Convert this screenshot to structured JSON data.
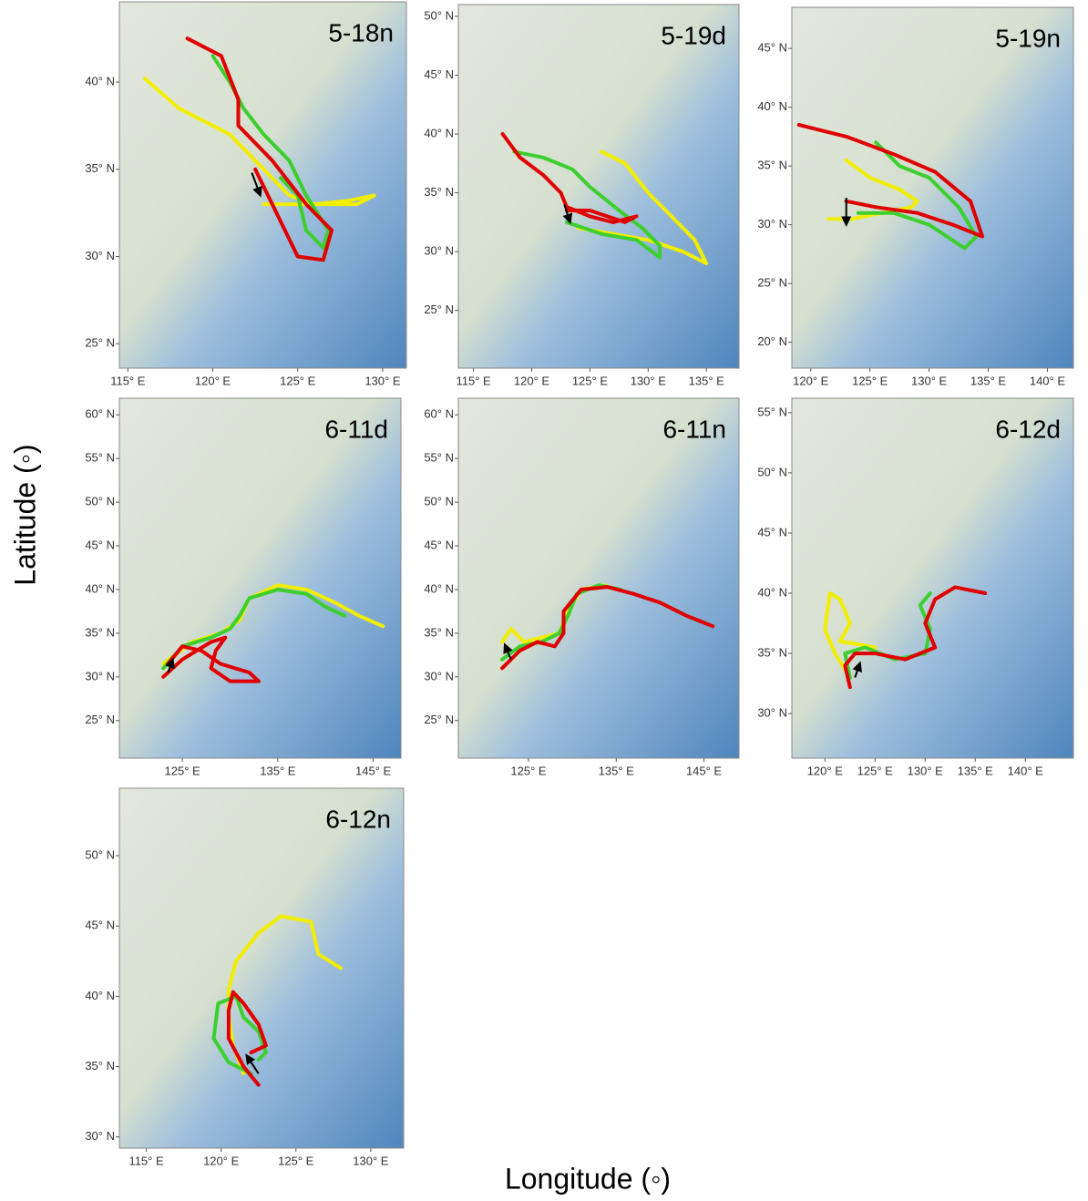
{
  "ylabel": "Latitude (◦)",
  "xlabel": "Longitude (◦)",
  "chart_data": [
    {
      "type": "map",
      "title": "5-18n",
      "xlim": [
        114.5,
        131.4
      ],
      "ylim": [
        23.6,
        44.6
      ],
      "xticks": [
        {
          "value": 115,
          "label": "115° E"
        },
        {
          "value": 120,
          "label": "120° E"
        },
        {
          "value": 125,
          "label": "125° E"
        },
        {
          "value": 130,
          "label": "130° E"
        }
      ],
      "yticks": [
        {
          "value": 25,
          "label": "25° N"
        },
        {
          "value": 30,
          "label": "30° N"
        },
        {
          "value": 35,
          "label": "35° N"
        },
        {
          "value": 40,
          "label": "40° N"
        }
      ],
      "series": [
        {
          "color": "#f2ee00",
          "x": [
            116,
            118,
            121,
            123,
            124.5,
            126,
            128,
            129.5,
            128.5,
            125,
            123
          ],
          "y": [
            40.2,
            38.5,
            37,
            35,
            33.5,
            33,
            33.2,
            33.5,
            33,
            33,
            33
          ]
        },
        {
          "color": "#3ccf2e",
          "x": [
            120,
            121,
            121.8,
            123,
            124.5,
            125.5,
            126.8,
            126.5,
            125.5,
            125,
            124
          ],
          "y": [
            41.5,
            40,
            38.5,
            37,
            35.5,
            33.5,
            31.5,
            30.5,
            31.5,
            33.5,
            34.5
          ]
        },
        {
          "color": "#e00000",
          "x": [
            118.5,
            120.5,
            121.5,
            121.5,
            123.5,
            125.5,
            127,
            126.5,
            125,
            124,
            123,
            122.5
          ],
          "y": [
            42.5,
            41.5,
            39,
            37.5,
            35.5,
            33,
            31.5,
            29.8,
            30,
            32,
            34,
            35
          ]
        }
      ],
      "arrow": {
        "x": [
          122.3,
          122.8
        ],
        "y": [
          34.8,
          33.5
        ]
      }
    },
    {
      "type": "map",
      "title": "5-19d",
      "xlim": [
        113.7,
        137.8
      ],
      "ylim": [
        20.1,
        51
      ],
      "xticks": [
        {
          "value": 115,
          "label": "115° E"
        },
        {
          "value": 120,
          "label": "120° E"
        },
        {
          "value": 125,
          "label": "125° E"
        },
        {
          "value": 130,
          "label": "130° E"
        },
        {
          "value": 135,
          "label": "135° E"
        }
      ],
      "yticks": [
        {
          "value": 25,
          "label": "25° N"
        },
        {
          "value": 30,
          "label": "30° N"
        },
        {
          "value": 35,
          "label": "35° N"
        },
        {
          "value": 40,
          "label": "40° N"
        },
        {
          "value": 45,
          "label": "45° N"
        },
        {
          "value": 50,
          "label": "50° N"
        }
      ],
      "series": [
        {
          "color": "#f2ee00",
          "x": [
            126,
            128,
            130,
            132,
            134,
            135,
            133,
            130,
            127,
            124
          ],
          "y": [
            38.5,
            37.5,
            35,
            33,
            31,
            29,
            30,
            31,
            31.5,
            32
          ]
        },
        {
          "color": "#3ccf2e",
          "x": [
            118.5,
            121,
            123.5,
            125,
            127.5,
            129.5,
            131,
            131,
            129,
            126,
            123
          ],
          "y": [
            38.5,
            38,
            37,
            35.5,
            33.5,
            32,
            30.5,
            29.5,
            31,
            31.5,
            32.5
          ]
        },
        {
          "color": "#e00000",
          "x": [
            117.5,
            119,
            121,
            122.5,
            123,
            125,
            127,
            129,
            128,
            125,
            123
          ],
          "y": [
            40,
            38,
            36.5,
            35,
            33.8,
            33,
            32.5,
            33,
            32.5,
            33.5,
            33.5
          ]
        }
      ],
      "arrow": {
        "x": [
          122.8,
          123.3
        ],
        "y": [
          34,
          32.5
        ]
      }
    },
    {
      "type": "map",
      "title": "5-19n",
      "xlim": [
        118.4,
        142.2
      ],
      "ylim": [
        17.8,
        48.5
      ],
      "xticks": [
        {
          "value": 120,
          "label": "120° E"
        },
        {
          "value": 125,
          "label": "125° E"
        },
        {
          "value": 130,
          "label": "130° E"
        },
        {
          "value": 135,
          "label": "135° E"
        },
        {
          "value": 140,
          "label": "140° E"
        }
      ],
      "yticks": [
        {
          "value": 20,
          "label": "20° N"
        },
        {
          "value": 25,
          "label": "25° N"
        },
        {
          "value": 30,
          "label": "30° N"
        },
        {
          "value": 35,
          "label": "35° N"
        },
        {
          "value": 40,
          "label": "40° N"
        },
        {
          "value": 45,
          "label": "45° N"
        }
      ],
      "series": [
        {
          "color": "#f2ee00",
          "x": [
            123,
            125,
            127.5,
            129,
            128.5,
            126,
            123.5,
            121.5
          ],
          "y": [
            35.5,
            34,
            33,
            32,
            31.5,
            31,
            30.5,
            30.5
          ]
        },
        {
          "color": "#3ccf2e",
          "x": [
            125.5,
            127.5,
            130,
            132.5,
            134,
            133,
            130,
            127,
            124
          ],
          "y": [
            37,
            35,
            34,
            31.5,
            29,
            28,
            30,
            31,
            31
          ]
        },
        {
          "color": "#e00000",
          "x": [
            119,
            123,
            127,
            130.5,
            133.5,
            134.5,
            132,
            129,
            125.5,
            123
          ],
          "y": [
            38.5,
            37.5,
            36,
            34.5,
            32,
            29,
            30,
            31,
            31.5,
            32
          ]
        }
      ],
      "arrow": {
        "x": [
          123,
          123
        ],
        "y": [
          32.3,
          30
        ]
      }
    },
    {
      "type": "map",
      "title": "6-11d",
      "xlim": [
        118.4,
        147.9
      ],
      "ylim": [
        20.7,
        61.9
      ],
      "xticks": [
        {
          "value": 125,
          "label": "125° E"
        },
        {
          "value": 135,
          "label": "135° E"
        },
        {
          "value": 145,
          "label": "145° E"
        }
      ],
      "yticks": [
        {
          "value": 25,
          "label": "25° N"
        },
        {
          "value": 30,
          "label": "30° N"
        },
        {
          "value": 35,
          "label": "35° N"
        },
        {
          "value": 40,
          "label": "40° N"
        },
        {
          "value": 45,
          "label": "45° N"
        },
        {
          "value": 50,
          "label": "50° N"
        },
        {
          "value": 55,
          "label": "55° N"
        },
        {
          "value": 60,
          "label": "60° N"
        }
      ],
      "series": [
        {
          "color": "#f2ee00",
          "x": [
            123,
            126,
            129,
            131,
            132,
            135,
            138,
            141,
            143.5,
            146
          ],
          "y": [
            31.5,
            34,
            35,
            36.5,
            39,
            40.5,
            40,
            38.5,
            37,
            35.8
          ]
        },
        {
          "color": "#3ccf2e",
          "x": [
            123,
            125,
            128,
            130,
            131,
            132,
            135,
            138,
            140,
            142
          ],
          "y": [
            31,
            33.5,
            34.5,
            35.5,
            37,
            39,
            40,
            39.5,
            38,
            37
          ]
        },
        {
          "color": "#e00000",
          "x": [
            123,
            125,
            128,
            129.5,
            128.5,
            128,
            130,
            133,
            132,
            129,
            127,
            125,
            123.5
          ],
          "y": [
            30,
            32,
            34,
            34.5,
            33,
            31,
            29.5,
            29.5,
            30.5,
            31.5,
            33,
            33.5,
            31.5
          ]
        }
      ],
      "arrow": {
        "x": [
          123.5,
          124
        ],
        "y": [
          30.5,
          32
        ]
      }
    },
    {
      "type": "map",
      "title": "6-11n",
      "xlim": [
        117,
        149
      ],
      "ylim": [
        20.7,
        61.9
      ],
      "xticks": [
        {
          "value": 125,
          "label": "125° E"
        },
        {
          "value": 135,
          "label": "135° E"
        },
        {
          "value": 145,
          "label": "145° E"
        }
      ],
      "yticks": [
        {
          "value": 25,
          "label": "25° N"
        },
        {
          "value": 30,
          "label": "30° N"
        },
        {
          "value": 35,
          "label": "35° N"
        },
        {
          "value": 40,
          "label": "40° N"
        },
        {
          "value": 45,
          "label": "45° N"
        },
        {
          "value": 50,
          "label": "50° N"
        },
        {
          "value": 55,
          "label": "55° N"
        },
        {
          "value": 60,
          "label": "60° N"
        }
      ],
      "series": [
        {
          "color": "#f2ee00",
          "x": [
            122,
            123,
            124.5,
            126.5,
            128.5,
            129.5,
            131,
            133.5,
            135
          ],
          "y": [
            34,
            35.5,
            34,
            34.5,
            35,
            37.5,
            40,
            40.5,
            40
          ]
        },
        {
          "color": "#3ccf2e",
          "x": [
            122,
            124,
            126.5,
            128.5,
            129.5,
            130.5,
            133,
            135.5
          ],
          "y": [
            32,
            33.5,
            34,
            35,
            37,
            39.5,
            40.5,
            40
          ]
        },
        {
          "color": "#e00000",
          "x": [
            122,
            124,
            126,
            128,
            129,
            129,
            131,
            134,
            137,
            140,
            143,
            146
          ],
          "y": [
            31,
            33,
            34,
            33.5,
            35,
            37.5,
            40,
            40.3,
            39.5,
            38.5,
            37,
            35.8
          ]
        }
      ],
      "arrow": {
        "x": [
          123,
          122.3
        ],
        "y": [
          32,
          33.7
        ]
      }
    },
    {
      "type": "map",
      "title": "6-12d",
      "xlim": [
        116.7,
        144.8
      ],
      "ylim": [
        26.3,
        56.2
      ],
      "xticks": [
        {
          "value": 120,
          "label": "120° E"
        },
        {
          "value": 125,
          "label": "125° E"
        },
        {
          "value": 130,
          "label": "130° E"
        },
        {
          "value": 135,
          "label": "135° E"
        },
        {
          "value": 140,
          "label": "140° E"
        }
      ],
      "yticks": [
        {
          "value": 30,
          "label": "30° N"
        },
        {
          "value": 35,
          "label": "35° N"
        },
        {
          "value": 40,
          "label": "40° N"
        },
        {
          "value": 45,
          "label": "45° N"
        },
        {
          "value": 50,
          "label": "50° N"
        },
        {
          "value": 55,
          "label": "55° N"
        }
      ],
      "series": [
        {
          "color": "#f2ee00",
          "x": [
            122.5,
            121,
            120,
            120.5,
            121.5,
            122.5,
            121.5,
            123,
            125
          ],
          "y": [
            33,
            35,
            37,
            40,
            39.5,
            37.5,
            36,
            35.8,
            35.5
          ]
        },
        {
          "color": "#3ccf2e",
          "x": [
            122.5,
            122,
            124,
            127,
            130,
            130.5,
            129.5,
            130.5
          ],
          "y": [
            33,
            35,
            35.5,
            34.5,
            35,
            37,
            39,
            40
          ]
        },
        {
          "color": "#e00000",
          "x": [
            122.5,
            122,
            123,
            125,
            128,
            131,
            130,
            131,
            133,
            136
          ],
          "y": [
            32.2,
            34,
            35,
            35,
            34.5,
            35.5,
            37.5,
            39.5,
            40.5,
            40
          ]
        }
      ],
      "arrow": {
        "x": [
          123,
          123.5
        ],
        "y": [
          33,
          34.2
        ]
      }
    },
    {
      "type": "map",
      "title": "6-12n",
      "xlim": [
        113.2,
        132.2
      ],
      "ylim": [
        29.2,
        54.8
      ],
      "xticks": [
        {
          "value": 115,
          "label": "115° E"
        },
        {
          "value": 120,
          "label": "120° E"
        },
        {
          "value": 125,
          "label": "125° E"
        },
        {
          "value": 130,
          "label": "130° E"
        }
      ],
      "yticks": [
        {
          "value": 30,
          "label": "30° N"
        },
        {
          "value": 35,
          "label": "35° N"
        },
        {
          "value": 40,
          "label": "40° N"
        },
        {
          "value": 45,
          "label": "45° N"
        },
        {
          "value": 50,
          "label": "50° N"
        }
      ],
      "series": [
        {
          "color": "#f2ee00",
          "x": [
            121.5,
            120.8,
            120.5,
            120.5,
            121,
            122.5,
            124,
            126,
            126.5,
            128
          ],
          "y": [
            34.5,
            36.5,
            38.5,
            40.5,
            42.5,
            44.5,
            45.7,
            45.3,
            43,
            42
          ]
        },
        {
          "color": "#3ccf2e",
          "x": [
            122,
            120.5,
            119.5,
            119.8,
            121,
            121.5,
            122.5,
            123,
            122.5
          ],
          "y": [
            34.5,
            35.3,
            37,
            39.5,
            40,
            38.5,
            37.5,
            36,
            35.5
          ]
        },
        {
          "color": "#e00000",
          "x": [
            122.5,
            121.5,
            120.5,
            120.5,
            120.8,
            121.5,
            122.5,
            123,
            122
          ],
          "y": [
            33.7,
            35,
            37,
            39,
            40.3,
            39.5,
            38,
            36.5,
            36
          ]
        }
      ],
      "arrow": {
        "x": [
          122.5,
          121.7
        ],
        "y": [
          34.5,
          35.8
        ]
      }
    }
  ]
}
